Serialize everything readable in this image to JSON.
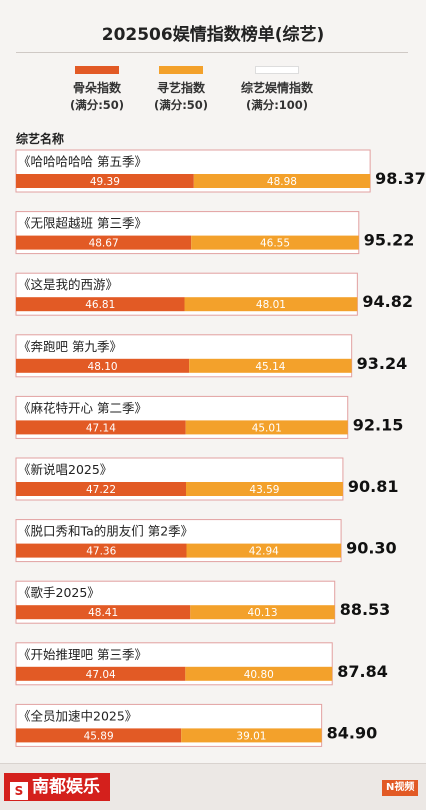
{
  "title": "202506娱情指数榜单(综艺)",
  "legend": [
    {
      "label": "骨朵指数",
      "sub": "(满分:50)",
      "color": "#e25a25"
    },
    {
      "label": "寻艺指数",
      "sub": "(满分:50)",
      "color": "#f3a12b"
    },
    {
      "label": "综艺娱情指数",
      "sub": "(满分:100)",
      "color": "#ffffff"
    }
  ],
  "category_header": "综艺名称",
  "colors": {
    "guduo": "#e25a25",
    "xunyi": "#f3a12b",
    "frame": "#e2a0a0",
    "total_text": "#111111"
  },
  "chart_data": {
    "type": "bar",
    "orientation": "horizontal",
    "stacked": true,
    "title": "202506娱情指数榜单(综艺)",
    "category_label": "综艺名称",
    "categories": [
      "《哈哈哈哈哈 第五季》",
      "《无限超越班 第三季》",
      "《这是我的西游》",
      "《奔跑吧 第九季》",
      "《麻花特开心 第二季》",
      "《新说唱2025》",
      "《脱口秀和Ta的朋友们 第2季》",
      "《歌手2025》",
      "《开始推理吧 第三季》",
      "《全员加速中2025》"
    ],
    "series": [
      {
        "name": "骨朵指数",
        "values": [
          "49.39",
          "48.67",
          "46.81",
          "48.10",
          "47.14",
          "47.22",
          "47.36",
          "48.41",
          "47.04",
          "45.89"
        ]
      },
      {
        "name": "寻艺指数",
        "values": [
          "48.98",
          "46.55",
          "48.01",
          "45.14",
          "45.01",
          "43.59",
          "42.94",
          "40.13",
          "40.80",
          "39.01"
        ]
      }
    ],
    "totals_series": "综艺娱情指数",
    "totals": [
      "98.37",
      "95.22",
      "94.82",
      "93.24",
      "92.15",
      "90.81",
      "90.30",
      "88.53",
      "87.84",
      "84.90"
    ]
  },
  "footer": {
    "logo_text": "南都娱乐",
    "logo_mark": "S",
    "badges": [
      "N视频"
    ]
  }
}
